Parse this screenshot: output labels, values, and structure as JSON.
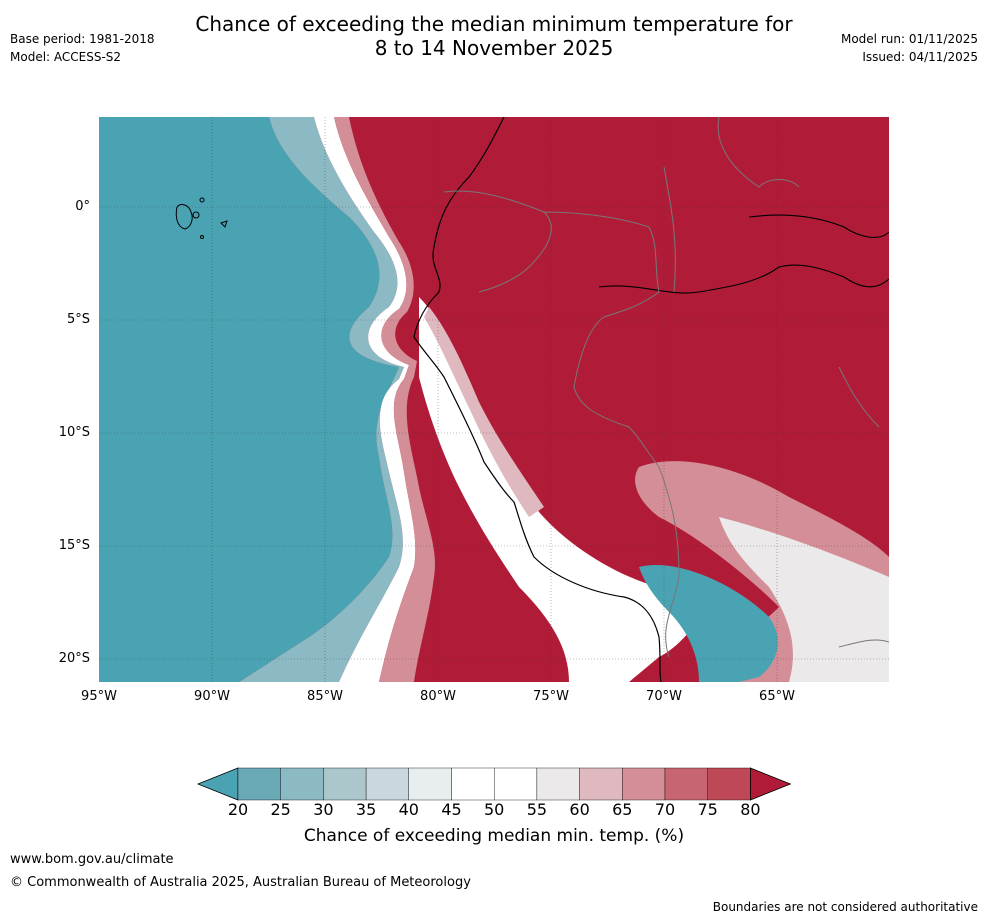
{
  "title_line1": "Chance of exceeding the median minimum temperature for",
  "title_line2": "8 to 14 November 2025",
  "meta_left": {
    "base_period": "Base period: 1981-2018",
    "model": "Model: ACCESS-S2"
  },
  "meta_right": {
    "model_run": "Model run: 01/11/2025",
    "issued": "Issued: 04/11/2025"
  },
  "map": {
    "lat_labels": [
      "0°",
      "5°S",
      "10°S",
      "15°S",
      "20°S"
    ],
    "lon_labels": [
      "95°W",
      "90°W",
      "85°W",
      "80°W",
      "75°W",
      "70°W",
      "65°W"
    ]
  },
  "colorbar": {
    "ticks": [
      "20",
      "25",
      "30",
      "35",
      "40",
      "45",
      "50",
      "55",
      "60",
      "65",
      "70",
      "75",
      "80"
    ],
    "colors": [
      "#4aa3b3",
      "#6aaab6",
      "#8bbac4",
      "#abc7cc",
      "#cad7dc",
      "#e8eef0",
      "#ffffff",
      "#ffffff",
      "#ebe9ea",
      "#dfb9bf",
      "#d48e98",
      "#c76672",
      "#be4856",
      "#b01c38"
    ],
    "label": "Chance of exceeding median min. temp. (%)"
  },
  "footer": {
    "url": "www.bom.gov.au/climate",
    "copyright": "© Commonwealth of Australia 2025, Australian Bureau of Meteorology",
    "note": "Boundaries are not considered authoritative"
  }
}
